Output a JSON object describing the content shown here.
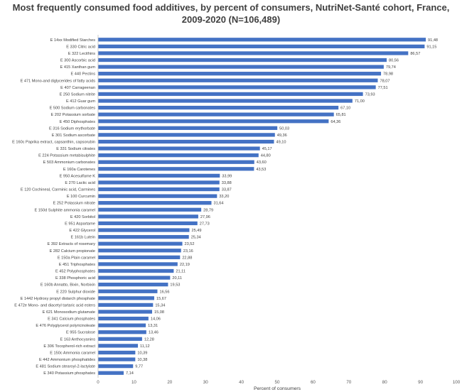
{
  "chart_data": {
    "type": "bar",
    "orientation": "horizontal",
    "title": "Most frequently consumed food additives, by percent of consumers, NutriNet-Santé cohort, France, 2009-2020 (N=106,489)",
    "xlabel": "Percent of consumers",
    "ylabel": "",
    "xlim": [
      0,
      100
    ],
    "xticks": [
      0,
      10,
      20,
      30,
      40,
      50,
      60,
      70,
      80,
      90,
      100
    ],
    "grid": false,
    "bar_color": "#4472c4",
    "categories": [
      "E 14xx Modified Starches",
      "E 330 Citric acid",
      "E 322 Lecithins",
      "E 300 Ascorbic acid",
      "E 415 Xanthan gum",
      "E 440 Pectins",
      "E 471 Mono-and diglycerides of fatty acids",
      "E 407 Carrageenan",
      "E 250 Sodium nitrite",
      "E 412 Guar gum",
      "E 500 Sodium carbonates",
      "E 202 Potassium sorbate",
      "E 450 Diphosphates",
      "E 316 Sodium erythorbate",
      "E 301 Sodium ascorbate",
      "E 160c Paprika extract, capsanthin, capsorubin",
      "E 331 Sodium citrates",
      "E 224 Potassium metabisulphite",
      "E 503 Ammonium carbonates",
      "E 160a Carotenes",
      "E 950 Acesulfame K",
      "E 270 Lactic acid",
      "E 120 Cochineal, Carminic acid, Carmines",
      "E 100 Curcumin",
      "E 252 Potassium nitrate",
      "E 150d Sulphite ammonia caramel",
      "E 420 Sorbitol",
      "E 951 Aspartame",
      "E 422 Glycerol",
      "E 161b Lutein",
      "E 392 Extracts of rosemary",
      "E 282 Calcium propionate",
      "E 150a Plain caramel",
      "E 451 Triphosphates",
      "E 452 Polyphosphates",
      "E 338 Phosphoric acid",
      "E 160b Annatto, Bixin, Norbixin",
      "E 220 Sulphur dioxide",
      "E 1442 Hydroxy propyl distarch phosphate",
      "E 472e Mono- and diacetyl tartaric acid esters",
      "E 621 Monosodium glutamate",
      "E 341 Calcium phosphates",
      "E 476 Polyglycerol polyricinoleate",
      "E 955 Sucralose",
      "E 163 Anthocyanins",
      "E 306 Tocopherol-rich extract",
      "E 150c Ammonia caramel",
      "E 442 Ammonium phosphatides",
      "E 481 Sodium stearoyl-2-lactylate",
      "E 340 Potassium phosphates"
    ],
    "values": [
      91.48,
      91.15,
      86.57,
      80.56,
      79.74,
      78.98,
      78.07,
      77.51,
      73.93,
      71.0,
      67.1,
      65.81,
      64.36,
      50.03,
      49.36,
      49.1,
      45.17,
      44.8,
      43.6,
      43.53,
      33.99,
      33.88,
      33.87,
      33.2,
      31.64,
      28.79,
      27.96,
      27.73,
      25.49,
      25.34,
      23.52,
      23.16,
      22.88,
      22.19,
      21.11,
      20.11,
      19.53,
      16.56,
      15.67,
      15.34,
      15.08,
      14.06,
      13.31,
      13.46,
      12.28,
      11.12,
      10.39,
      10.38,
      9.77,
      7.14
    ],
    "value_labels": [
      "91,48",
      "91,15",
      "86,57",
      "80,56",
      "79,74",
      "78,98",
      "78,07",
      "77,51",
      "73,93",
      "71,00",
      "67,10",
      "65,81",
      "64,36",
      "50,03",
      "49,36",
      "49,10",
      "45,17",
      "44,80",
      "43,60",
      "43,53",
      "33,99",
      "33,88",
      "33,87",
      "33,20",
      "31,64",
      "28,79",
      "27,96",
      "27,73",
      "25,49",
      "25,34",
      "23,52",
      "23,16",
      "22,88",
      "22,19",
      "21,11",
      "20,11",
      "19,53",
      "16,56",
      "15,67",
      "15,34",
      "15,08",
      "14,06",
      "13,31",
      "13,46",
      "12,28",
      "11,12",
      "10,39",
      "10,38",
      "9,77",
      "7,14"
    ]
  }
}
